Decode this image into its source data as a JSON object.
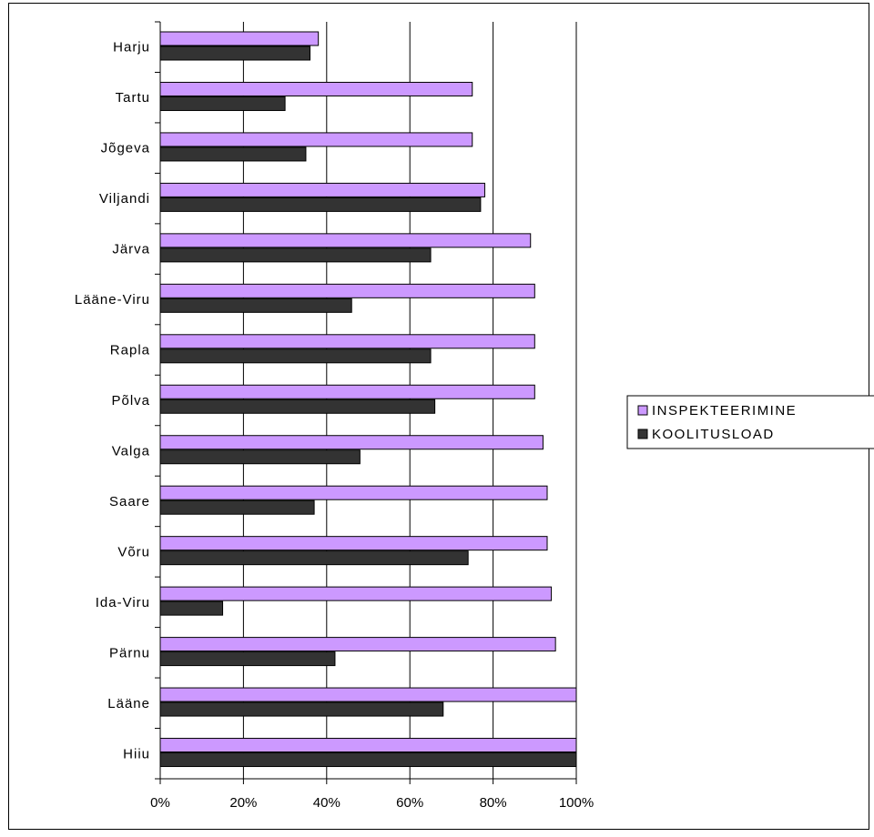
{
  "chart_data": {
    "type": "bar",
    "orientation": "horizontal",
    "categories": [
      "Harju",
      "Tartu",
      "Jõgeva",
      "Viljandi",
      "Järva",
      "Lääne-Viru",
      "Rapla",
      "Põlva",
      "Valga",
      "Saare",
      "Võru",
      "Ida-Viru",
      "Pärnu",
      "Lääne",
      "Hiiu"
    ],
    "series": [
      {
        "name": "INSPEKTEERIMINE",
        "color": "#cc99ff",
        "values": [
          38,
          75,
          75,
          78,
          89,
          90,
          90,
          90,
          92,
          93,
          93,
          94,
          95,
          100,
          100
        ]
      },
      {
        "name": "KOOLITUSLOAD",
        "color": "#333333",
        "values": [
          36,
          30,
          35,
          77,
          65,
          46,
          65,
          66,
          48,
          37,
          74,
          15,
          42,
          68,
          100
        ]
      }
    ],
    "xlim": [
      0,
      100
    ],
    "x_ticks": [
      0,
      20,
      40,
      60,
      80,
      100
    ],
    "x_tick_labels": [
      "0%",
      "20%",
      "40%",
      "60%",
      "80%",
      "100%"
    ],
    "grid": "vertical",
    "legend_position": "right",
    "title": "",
    "xlabel": "",
    "ylabel": ""
  }
}
